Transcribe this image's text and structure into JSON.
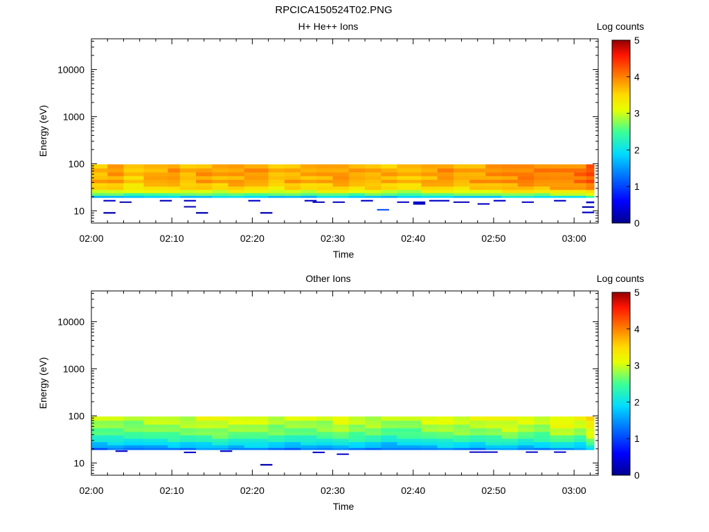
{
  "page_title": "RPCICA150524T02.PNG",
  "chart_data": [
    {
      "type": "heatmap",
      "title": "H+ He++ Ions",
      "xlabel": "Time",
      "ylabel": "Energy (eV)",
      "x_range": [
        "02:00",
        "03:03"
      ],
      "x_ticks": [
        "02:00",
        "02:10",
        "02:20",
        "02:30",
        "02:40",
        "02:50",
        "03:00"
      ],
      "y_scale": "log",
      "y_range": [
        5.5,
        45000
      ],
      "y_ticks": [
        "10",
        "100",
        "1000",
        "10000"
      ],
      "colorbar": {
        "label": "Log counts",
        "range": [
          0,
          5
        ],
        "ticks": [
          "0",
          "1",
          "2",
          "3",
          "4",
          "5"
        ]
      },
      "time_bins_start_min": [
        0,
        2,
        4,
        6.5,
        9.5,
        11,
        13,
        15,
        17,
        19,
        22,
        24,
        26,
        28,
        30,
        32,
        34,
        36,
        38,
        41,
        43,
        45,
        47,
        49,
        51,
        53,
        55,
        57,
        60,
        61.5
      ],
      "energy_bins": [
        {
          "lo": 19,
          "hi": 21
        },
        {
          "lo": 21,
          "hi": 24
        },
        {
          "lo": 24,
          "hi": 28
        },
        {
          "lo": 28,
          "hi": 33
        },
        {
          "lo": 33,
          "hi": 39
        },
        {
          "lo": 39,
          "hi": 46
        },
        {
          "lo": 46,
          "hi": 55
        },
        {
          "lo": 55,
          "hi": 66
        },
        {
          "lo": 66,
          "hi": 80
        },
        {
          "lo": 80,
          "hi": 97
        }
      ],
      "band_base_log_counts": [
        1.7,
        2.5,
        3.0,
        3.4,
        3.5,
        3.7,
        3.6,
        3.7,
        3.7,
        3.6
      ],
      "column_offsets": [
        0.05,
        0.15,
        -0.05,
        0.1,
        0.2,
        0.05,
        0.15,
        0.1,
        0.2,
        0.15,
        0.0,
        0.1,
        0.05,
        0.15,
        0.2,
        0.1,
        0.1,
        0.05,
        0.0,
        0.15,
        0.2,
        0.1,
        0.15,
        0.2,
        0.3,
        0.35,
        0.3,
        0.35,
        0.4,
        0.6
      ],
      "sparse_points": [
        {
          "t0": 1.5,
          "t1": 3.0,
          "e_lo": 15.8,
          "e_hi": 17.0,
          "v": 0.3
        },
        {
          "t0": 3.5,
          "t1": 5.0,
          "e_lo": 14.8,
          "e_hi": 15.8,
          "v": 0.2
        },
        {
          "t0": 8.5,
          "t1": 10.0,
          "e_lo": 15.8,
          "e_hi": 17.0,
          "v": 0.25
        },
        {
          "t0": 11.5,
          "t1": 13.0,
          "e_lo": 15.8,
          "e_hi": 17.0,
          "v": 0.3
        },
        {
          "t0": 11.5,
          "t1": 13.0,
          "e_lo": 11.8,
          "e_hi": 12.6,
          "v": 0.2
        },
        {
          "t0": 1.5,
          "t1": 3.0,
          "e_lo": 8.7,
          "e_hi": 9.4,
          "v": 0.2
        },
        {
          "t0": 13.0,
          "t1": 14.5,
          "e_lo": 8.7,
          "e_hi": 9.4,
          "v": 0.2
        },
        {
          "t0": 19.5,
          "t1": 21.0,
          "e_lo": 15.8,
          "e_hi": 17.0,
          "v": 0.3
        },
        {
          "t0": 21.0,
          "t1": 22.5,
          "e_lo": 8.7,
          "e_hi": 9.4,
          "v": 0.2
        },
        {
          "t0": 26.5,
          "t1": 28.0,
          "e_lo": 15.8,
          "e_hi": 17.0,
          "v": 0.3
        },
        {
          "t0": 27.5,
          "t1": 29.0,
          "e_lo": 14.8,
          "e_hi": 15.8,
          "v": 0.2
        },
        {
          "t0": 30.0,
          "t1": 31.5,
          "e_lo": 14.8,
          "e_hi": 15.8,
          "v": 0.25
        },
        {
          "t0": 33.5,
          "t1": 35.0,
          "e_lo": 15.8,
          "e_hi": 17.0,
          "v": 0.3
        },
        {
          "t0": 35.5,
          "t1": 37.0,
          "e_lo": 10.2,
          "e_hi": 10.9,
          "v": 1.0
        },
        {
          "t0": 38.0,
          "t1": 39.5,
          "e_lo": 14.8,
          "e_hi": 15.8,
          "v": 0.3
        },
        {
          "t0": 40.0,
          "t1": 41.5,
          "e_lo": 13.5,
          "e_hi": 15.8,
          "v": 0.3
        },
        {
          "t0": 42.0,
          "t1": 44.5,
          "e_lo": 15.8,
          "e_hi": 17.0,
          "v": 0.3
        },
        {
          "t0": 45.0,
          "t1": 47.0,
          "e_lo": 14.8,
          "e_hi": 15.8,
          "v": 0.25
        },
        {
          "t0": 48.0,
          "t1": 49.5,
          "e_lo": 13.5,
          "e_hi": 14.5,
          "v": 0.25
        },
        {
          "t0": 50.0,
          "t1": 51.5,
          "e_lo": 15.8,
          "e_hi": 17.0,
          "v": 0.3
        },
        {
          "t0": 53.5,
          "t1": 55.0,
          "e_lo": 14.8,
          "e_hi": 15.8,
          "v": 0.3
        },
        {
          "t0": 57.5,
          "t1": 59.0,
          "e_lo": 15.8,
          "e_hi": 17.0,
          "v": 0.3
        },
        {
          "t0": 61.0,
          "t1": 62.5,
          "e_lo": 11.6,
          "e_hi": 12.5,
          "v": 0.2
        },
        {
          "t0": 61.0,
          "t1": 62.5,
          "e_lo": 8.9,
          "e_hi": 9.6,
          "v": 0.3
        },
        {
          "t0": 61.5,
          "t1": 62.5,
          "e_lo": 14.5,
          "e_hi": 15.8,
          "v": 0.3
        }
      ]
    },
    {
      "type": "heatmap",
      "title": "Other Ions",
      "xlabel": "Time",
      "ylabel": "Energy (eV)",
      "x_range": [
        "02:00",
        "03:03"
      ],
      "x_ticks": [
        "02:00",
        "02:10",
        "02:20",
        "02:30",
        "02:40",
        "02:50",
        "03:00"
      ],
      "y_scale": "log",
      "y_range": [
        5.5,
        45000
      ],
      "y_ticks": [
        "10",
        "100",
        "1000",
        "10000"
      ],
      "colorbar": {
        "label": "Log counts",
        "range": [
          0,
          5
        ],
        "ticks": [
          "0",
          "1",
          "2",
          "3",
          "4",
          "5"
        ]
      },
      "time_bins_start_min": [
        0,
        2,
        4,
        6.5,
        9.5,
        11,
        13,
        15,
        17,
        19,
        22,
        24,
        26,
        28,
        30,
        32,
        34,
        36,
        38,
        41,
        43,
        45,
        47,
        49,
        51,
        53,
        55,
        57,
        60,
        61.5
      ],
      "energy_bins": [
        {
          "lo": 19,
          "hi": 21
        },
        {
          "lo": 21,
          "hi": 24
        },
        {
          "lo": 24,
          "hi": 28
        },
        {
          "lo": 28,
          "hi": 33
        },
        {
          "lo": 33,
          "hi": 39
        },
        {
          "lo": 39,
          "hi": 46
        },
        {
          "lo": 46,
          "hi": 55
        },
        {
          "lo": 55,
          "hi": 66
        },
        {
          "lo": 66,
          "hi": 80
        },
        {
          "lo": 80,
          "hi": 97
        }
      ],
      "band_base_log_counts": [
        1.2,
        1.6,
        1.8,
        2.1,
        2.3,
        2.5,
        2.6,
        2.7,
        2.8,
        2.9
      ],
      "column_offsets": [
        0.0,
        0.05,
        0.0,
        0.1,
        0.15,
        0.1,
        0.2,
        0.25,
        0.15,
        0.2,
        0.1,
        0.05,
        0.1,
        0.1,
        0.25,
        0.15,
        0.1,
        0.0,
        0.05,
        0.15,
        0.25,
        0.2,
        0.15,
        0.25,
        0.3,
        0.2,
        0.15,
        0.35,
        0.25,
        0.6
      ],
      "sparse_points": [
        {
          "t0": 3.0,
          "t1": 4.5,
          "e_lo": 17.2,
          "e_hi": 18.5,
          "v": 0.3
        },
        {
          "t0": 11.5,
          "t1": 13.0,
          "e_lo": 16.2,
          "e_hi": 17.4,
          "v": 0.3
        },
        {
          "t0": 16.0,
          "t1": 17.5,
          "e_lo": 17.2,
          "e_hi": 18.5,
          "v": 0.3
        },
        {
          "t0": 21.0,
          "t1": 22.5,
          "e_lo": 8.8,
          "e_hi": 9.5,
          "v": 0.2
        },
        {
          "t0": 27.5,
          "t1": 29.0,
          "e_lo": 16.2,
          "e_hi": 17.4,
          "v": 0.3
        },
        {
          "t0": 30.5,
          "t1": 32.0,
          "e_lo": 14.9,
          "e_hi": 15.9,
          "v": 0.3
        },
        {
          "t0": 47.0,
          "t1": 50.5,
          "e_lo": 16.5,
          "e_hi": 17.6,
          "v": 0.3
        },
        {
          "t0": 54.0,
          "t1": 55.5,
          "e_lo": 16.5,
          "e_hi": 17.6,
          "v": 0.3
        },
        {
          "t0": 57.5,
          "t1": 59.0,
          "e_lo": 16.5,
          "e_hi": 17.6,
          "v": 0.3
        }
      ]
    }
  ]
}
